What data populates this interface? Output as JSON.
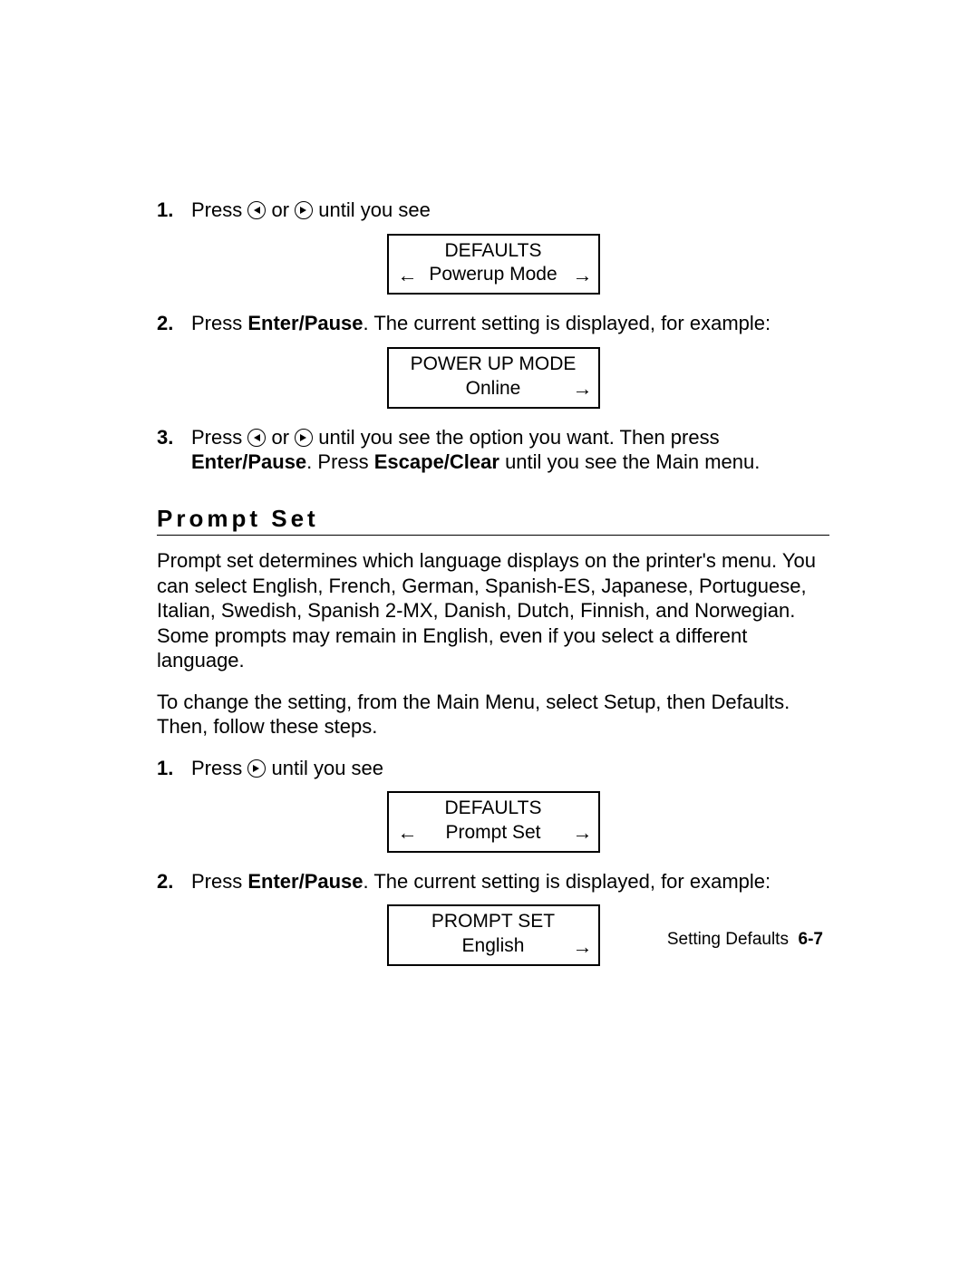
{
  "steps_top": {
    "s1": {
      "num": "1.",
      "pre": "Press ",
      "mid": " or ",
      "post": " until you see"
    },
    "s2": {
      "num": "2.",
      "t1": "Press ",
      "b1": "Enter/Pause",
      "t2": ".  The current setting is displayed, for example:"
    },
    "s3": {
      "num": "3.",
      "t1": "Press  ",
      "mid": " or ",
      "t2": " until you see the option you want.  Then press ",
      "b1": "Enter/Pause",
      "t3": ".  Press ",
      "b2": "Escape/Clear",
      "t4": " until you see the Main menu."
    }
  },
  "lcd1": {
    "line1": "DEFAULTS",
    "line2": "Powerup Mode",
    "left": true,
    "right": true
  },
  "lcd2": {
    "line1": "POWER UP MODE",
    "line2": "Online",
    "left": false,
    "right": true
  },
  "section_title": "Prompt Set",
  "para1": "Prompt set determines which language displays on the printer's menu.  You can select English, French, German, Spanish-ES, Japanese, Portuguese, Italian, Swedish, Spanish 2-MX, Danish, Dutch, Finnish, and Norwegian.  Some prompts may remain in English, even if you select a different language.",
  "para2": "To change the setting, from the Main Menu, select Setup, then Defaults.  Then, follow these steps.",
  "steps_bottom": {
    "s1": {
      "num": "1.",
      "pre": "Press ",
      "post": " until you see"
    },
    "s2": {
      "num": "2.",
      "t1": "Press ",
      "b1": "Enter/Pause",
      "t2": ".  The current setting is displayed, for example:"
    }
  },
  "lcd3": {
    "line1": "DEFAULTS",
    "line2": "Prompt Set",
    "left": true,
    "right": true
  },
  "lcd4": {
    "line1": "PROMPT SET",
    "line2": "English",
    "left": false,
    "right": true
  },
  "footer": {
    "label": "Setting Defaults",
    "page": "6-7"
  },
  "glyphs": {
    "left_arrow": "←",
    "right_arrow": "→"
  }
}
